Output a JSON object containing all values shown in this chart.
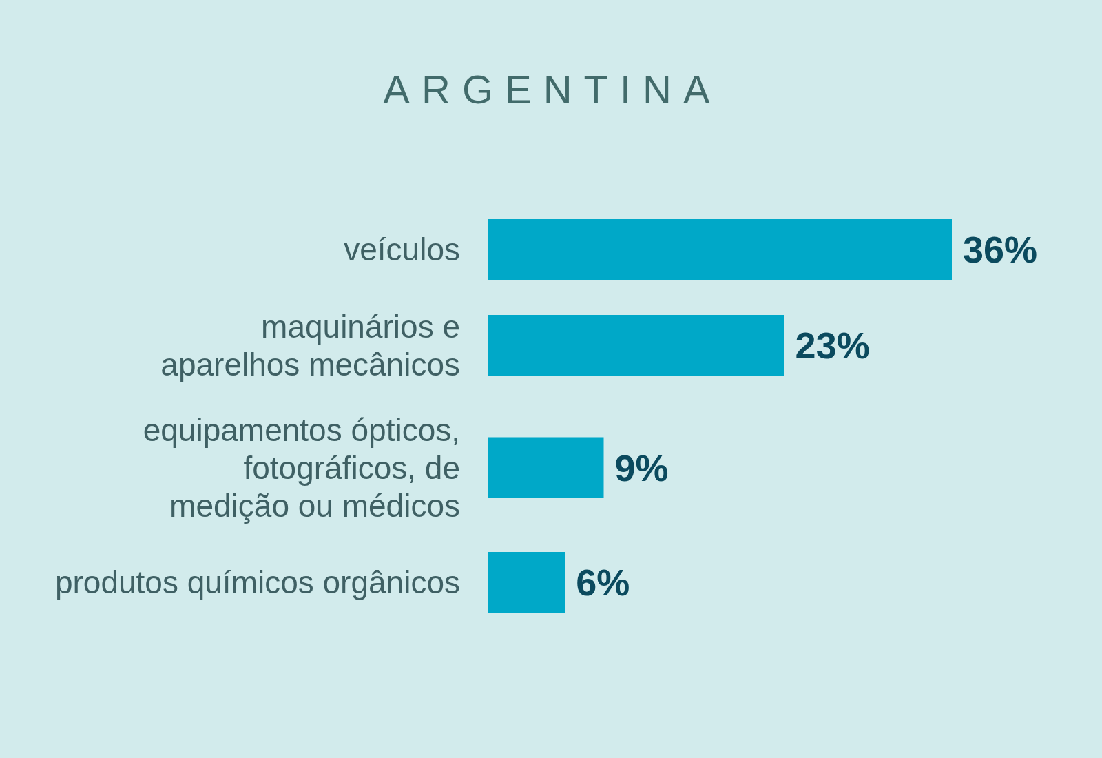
{
  "chart_data": {
    "type": "bar",
    "orientation": "horizontal",
    "title": "ARGENTINA",
    "categories": [
      "veículos",
      "maquinários e aparelhos mecânicos",
      "equipamentos ópticos, fotográficos, de medição ou médicos",
      "produtos químicos orgânicos"
    ],
    "values": [
      36,
      23,
      9,
      6
    ],
    "value_labels": [
      "36%",
      "23%",
      "9%",
      "6%"
    ],
    "color": "#00a8c8"
  }
}
